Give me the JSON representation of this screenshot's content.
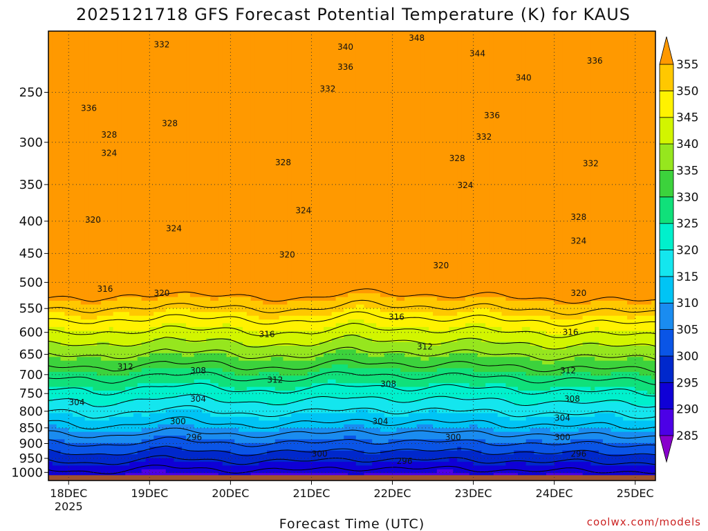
{
  "title": "2025121718 GFS Forecast Potential Temperature (K) for KAUS",
  "credit": "coolwx.com/models",
  "chart_data": {
    "type": "heatmap",
    "title": "2025121718 GFS Forecast Potential Temperature (K) for KAUS",
    "xlabel": "Forecast Time (UTC)",
    "ylabel": "",
    "x_ticks": [
      {
        "label": "18DEC",
        "sub": "2025",
        "day": 0
      },
      {
        "label": "19DEC",
        "sub": "",
        "day": 1
      },
      {
        "label": "20DEC",
        "sub": "",
        "day": 2
      },
      {
        "label": "21DEC",
        "sub": "",
        "day": 3
      },
      {
        "label": "22DEC",
        "sub": "",
        "day": 4
      },
      {
        "label": "23DEC",
        "sub": "",
        "day": 5
      },
      {
        "label": "24DEC",
        "sub": "",
        "day": 6
      },
      {
        "label": "25DEC",
        "sub": "",
        "day": 7
      }
    ],
    "x_range_days": [
      -0.25,
      7.25
    ],
    "y_ticks": [
      250,
      300,
      350,
      400,
      450,
      500,
      550,
      600,
      650,
      700,
      750,
      800,
      850,
      900,
      950,
      1000
    ],
    "y_range_hpa": [
      200,
      1030
    ],
    "y_scale": "log",
    "grid": true,
    "colorbar": {
      "levels": [
        285,
        290,
        295,
        300,
        305,
        310,
        315,
        320,
        325,
        330,
        335,
        340,
        345,
        350,
        355
      ],
      "colors": [
        "#8800cc",
        "#4c00e6",
        "#0f00d6",
        "#0028cc",
        "#0a55e6",
        "#1a8cf0",
        "#00c4f5",
        "#14e6ee",
        "#00f0cc",
        "#10e07a",
        "#3cd23c",
        "#96e61e",
        "#d2f500",
        "#fff200",
        "#ffc800",
        "#ff9900"
      ],
      "placement": "right"
    },
    "contour_interval_k": 4,
    "contour_labels": [
      {
        "value": "348",
        "day": 4.3,
        "p": 205
      },
      {
        "value": "344",
        "day": 5.05,
        "p": 217
      },
      {
        "value": "340",
        "day": 3.42,
        "p": 212
      },
      {
        "value": "340",
        "day": 5.62,
        "p": 237
      },
      {
        "value": "336",
        "day": 3.42,
        "p": 228
      },
      {
        "value": "336",
        "day": 6.5,
        "p": 223
      },
      {
        "value": "336",
        "day": 0.25,
        "p": 265
      },
      {
        "value": "336",
        "day": 5.23,
        "p": 272
      },
      {
        "value": "332",
        "day": 1.15,
        "p": 210
      },
      {
        "value": "332",
        "day": 3.2,
        "p": 247
      },
      {
        "value": "332",
        "day": 5.13,
        "p": 294
      },
      {
        "value": "332",
        "day": 6.45,
        "p": 324
      },
      {
        "value": "328",
        "day": 1.25,
        "p": 280
      },
      {
        "value": "328",
        "day": 0.5,
        "p": 292
      },
      {
        "value": "328",
        "day": 2.65,
        "p": 323
      },
      {
        "value": "328",
        "day": 4.8,
        "p": 318
      },
      {
        "value": "328",
        "day": 6.3,
        "p": 394
      },
      {
        "value": "324",
        "day": 0.5,
        "p": 312
      },
      {
        "value": "324",
        "day": 2.9,
        "p": 385
      },
      {
        "value": "324",
        "day": 4.9,
        "p": 351
      },
      {
        "value": "324",
        "day": 1.3,
        "p": 411
      },
      {
        "value": "324",
        "day": 6.3,
        "p": 430
      },
      {
        "value": "320",
        "day": 0.3,
        "p": 398
      },
      {
        "value": "320",
        "day": 2.7,
        "p": 452
      },
      {
        "value": "320",
        "day": 4.6,
        "p": 470
      },
      {
        "value": "320",
        "day": 1.15,
        "p": 520
      },
      {
        "value": "320",
        "day": 6.3,
        "p": 520
      },
      {
        "value": "316",
        "day": 0.45,
        "p": 512
      },
      {
        "value": "316",
        "day": 4.05,
        "p": 567
      },
      {
        "value": "316",
        "day": 2.45,
        "p": 604
      },
      {
        "value": "316",
        "day": 6.2,
        "p": 600
      },
      {
        "value": "312",
        "day": 0.7,
        "p": 680
      },
      {
        "value": "312",
        "day": 4.4,
        "p": 632
      },
      {
        "value": "312",
        "day": 2.55,
        "p": 714
      },
      {
        "value": "312",
        "day": 6.17,
        "p": 690
      },
      {
        "value": "308",
        "day": 1.6,
        "p": 690
      },
      {
        "value": "308",
        "day": 3.95,
        "p": 725
      },
      {
        "value": "308",
        "day": 6.22,
        "p": 765
      },
      {
        "value": "304",
        "day": 0.1,
        "p": 775
      },
      {
        "value": "304",
        "day": 1.6,
        "p": 765
      },
      {
        "value": "304",
        "day": 3.85,
        "p": 830
      },
      {
        "value": "304",
        "day": 6.1,
        "p": 820
      },
      {
        "value": "300",
        "day": 1.35,
        "p": 830
      },
      {
        "value": "300",
        "day": 4.75,
        "p": 880
      },
      {
        "value": "300",
        "day": 3.1,
        "p": 935
      },
      {
        "value": "300",
        "day": 6.1,
        "p": 880
      },
      {
        "value": "296",
        "day": 1.55,
        "p": 880
      },
      {
        "value": "296",
        "day": 4.15,
        "p": 960
      },
      {
        "value": "296",
        "day": 6.3,
        "p": 935
      }
    ]
  }
}
